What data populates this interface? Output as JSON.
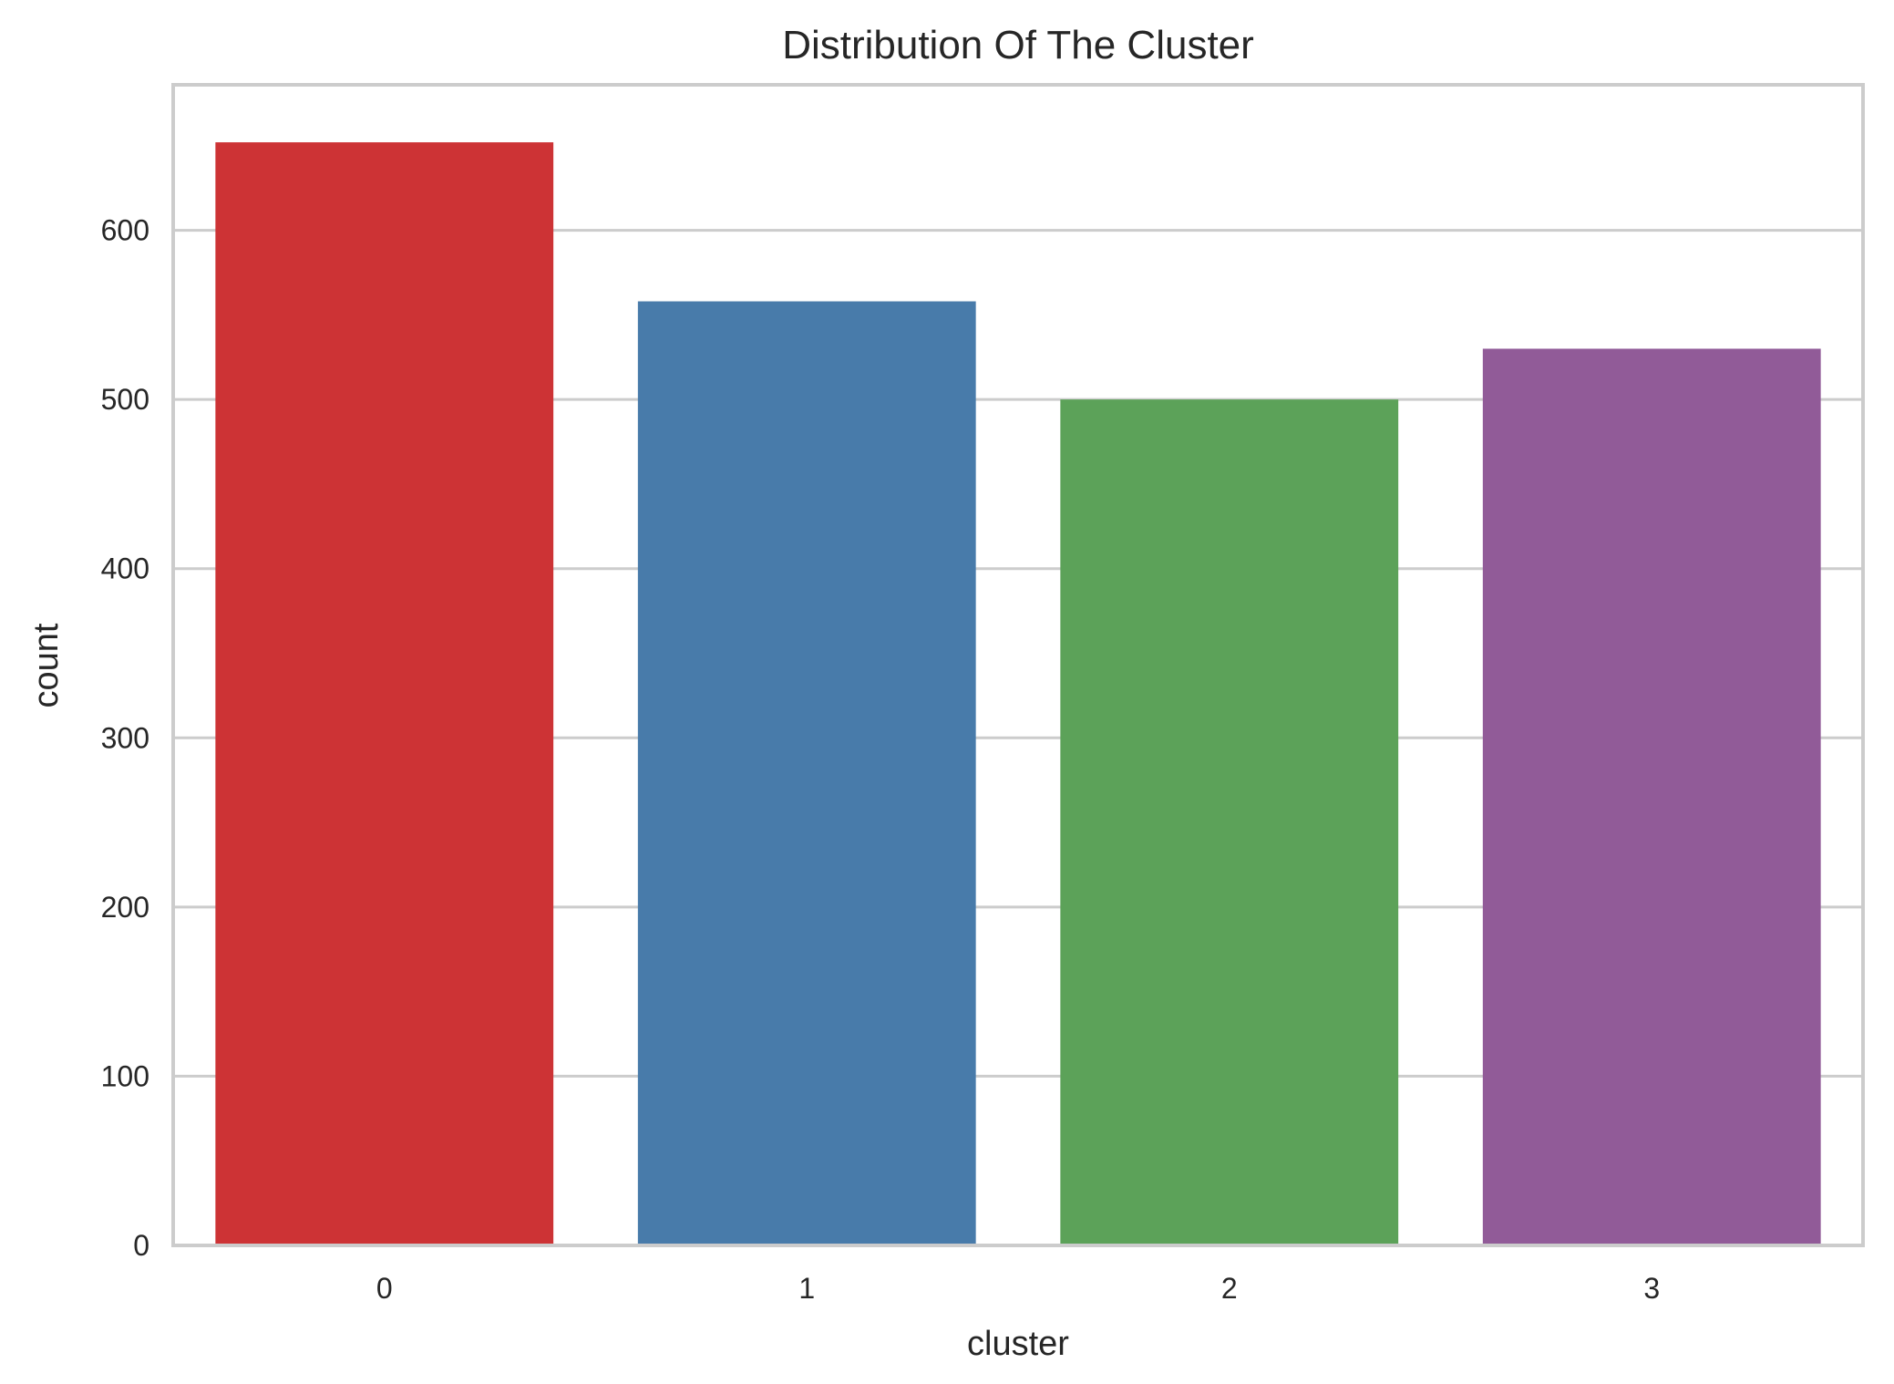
{
  "chart_data": {
    "type": "bar",
    "title": "Distribution Of The Cluster",
    "xlabel": "cluster",
    "ylabel": "count",
    "categories": [
      "0",
      "1",
      "2",
      "3"
    ],
    "values": [
      652,
      558,
      500,
      530
    ],
    "colors": [
      "#cd3335",
      "#487baa",
      "#5ca259",
      "#915b98"
    ],
    "yticks": [
      0,
      100,
      200,
      300,
      400,
      500,
      600
    ],
    "ylim": [
      0,
      686
    ],
    "grid": "horizontal",
    "grid_color": "#cccccc",
    "background": "#ffffff"
  }
}
